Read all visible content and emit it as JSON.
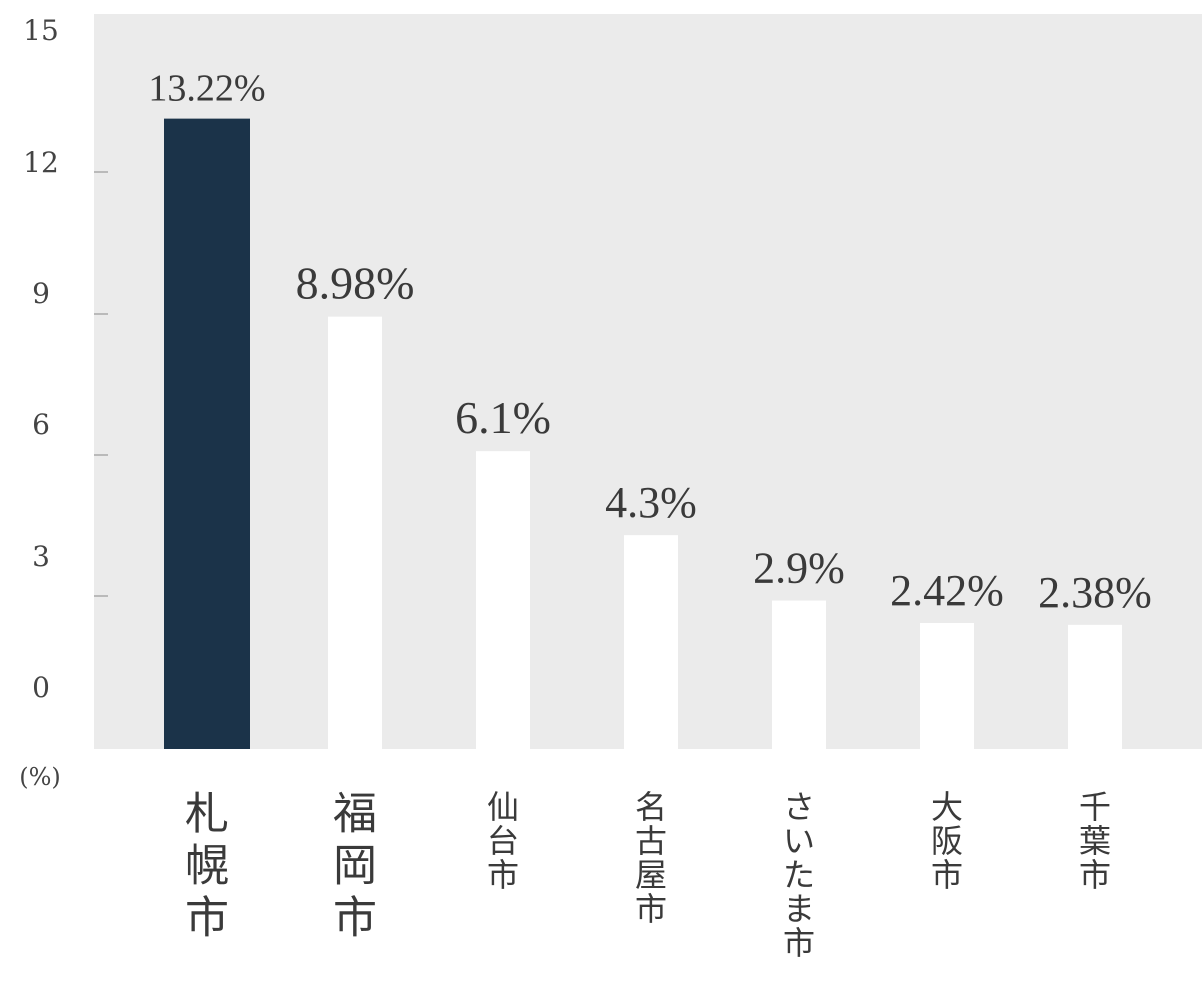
{
  "chart_data": {
    "type": "bar",
    "categories": [
      "札幌市",
      "福岡市",
      "仙台市",
      "名古屋市",
      "さいたま市",
      "大阪市",
      "千葉市"
    ],
    "values": [
      13.22,
      8.98,
      6.1,
      4.3,
      2.9,
      2.42,
      2.38
    ],
    "value_labels": [
      "13.22%",
      "8.98%",
      "6.1%",
      "4.3%",
      "2.9%",
      "2.42%",
      "2.38%"
    ],
    "y_ticks": [
      "15",
      "12",
      "9",
      "6",
      "3",
      "0"
    ],
    "y_unit": "(%)",
    "grid": false,
    "colors": {
      "highlight": "#1b3349",
      "bar": "#ffffff",
      "background": "#ebebeb",
      "text": "#3a3a3a"
    }
  }
}
